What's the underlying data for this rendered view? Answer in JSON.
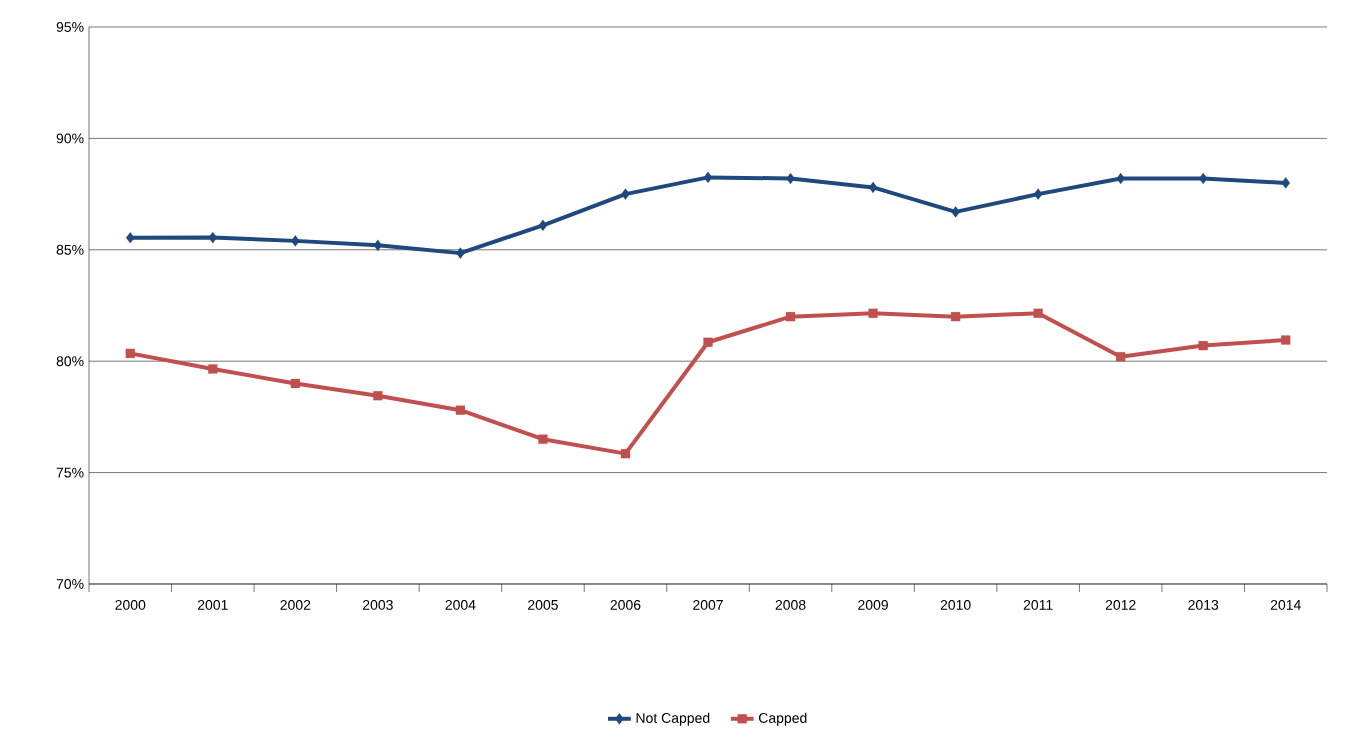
{
  "chart_data": {
    "type": "line",
    "categories": [
      "2000",
      "2001",
      "2002",
      "2003",
      "2004",
      "2005",
      "2006",
      "2007",
      "2008",
      "2009",
      "2010",
      "2011",
      "2012",
      "2013",
      "2014"
    ],
    "series": [
      {
        "name": "Not Capped",
        "color": "#1f497d",
        "marker": "diamond",
        "values": [
          85.54,
          85.55,
          85.4,
          85.2,
          84.85,
          86.1,
          87.5,
          88.25,
          88.2,
          87.8,
          86.7,
          87.5,
          88.2,
          88.2,
          88.0
        ]
      },
      {
        "name": "Capped",
        "color": "#c0504d",
        "marker": "square",
        "values": [
          80.35,
          79.65,
          79.0,
          78.45,
          77.8,
          76.5,
          75.85,
          80.85,
          82.0,
          82.15,
          82.0,
          82.15,
          80.2,
          80.7,
          80.95
        ]
      }
    ],
    "ylim": [
      70,
      95
    ],
    "yticks": [
      {
        "value": 70,
        "label": "70%"
      },
      {
        "value": 75,
        "label": "75%"
      },
      {
        "value": 80,
        "label": "80%"
      },
      {
        "value": 85,
        "label": "85%"
      },
      {
        "value": 90,
        "label": "90%"
      },
      {
        "value": 95,
        "label": "95%"
      }
    ],
    "grid": "y",
    "legend": "bottom"
  }
}
